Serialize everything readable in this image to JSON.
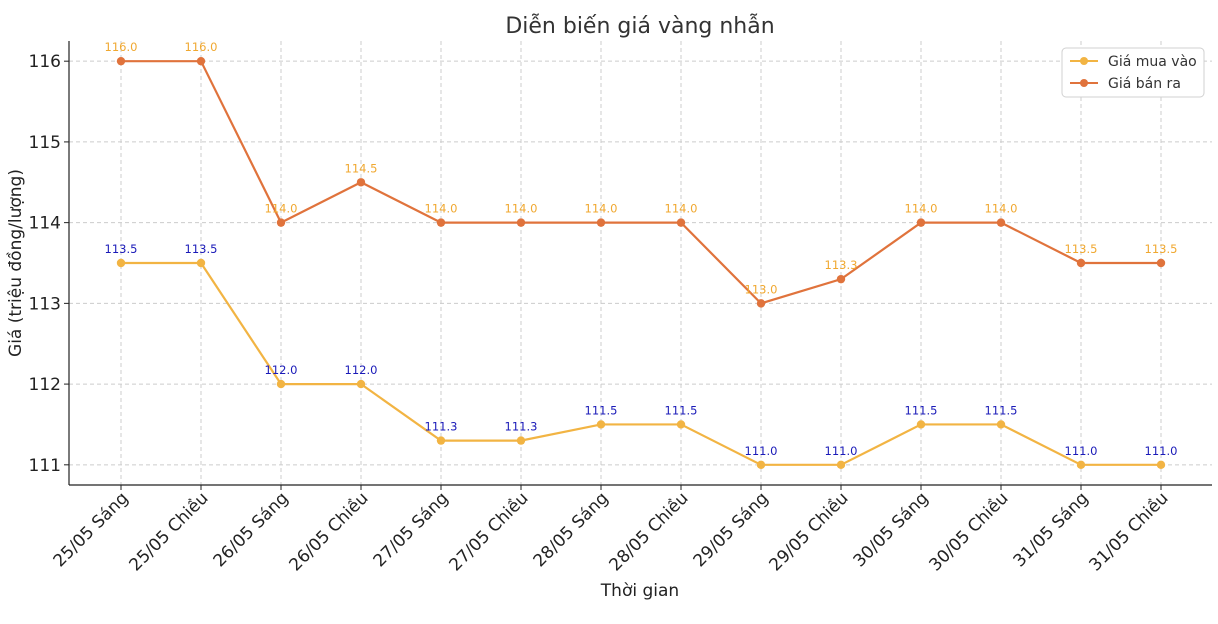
{
  "chart_data": {
    "type": "line",
    "title": "Diễn biến giá vàng nhẫn",
    "xlabel": "Thời gian",
    "ylabel": "Giá (triệu đồng/lượng)",
    "categories": [
      "25/05 Sáng",
      "25/05 Chiều",
      "26/05 Sáng",
      "26/05 Chiều",
      "27/05 Sáng",
      "27/05 Chiều",
      "28/05 Sáng",
      "28/05 Chiều",
      "29/05 Sáng",
      "29/05 Chiều",
      "30/05 Sáng",
      "30/05 Chiều",
      "31/05 Sáng",
      "31/05 Chiều"
    ],
    "yticks": [
      111,
      112,
      113,
      114,
      115,
      116
    ],
    "ylim": [
      110.75,
      116.25
    ],
    "grid": true,
    "legend_position": "top-right",
    "series": [
      {
        "name": "Giá mua vào",
        "color": "#f2b443",
        "label_color": "#1a1ab8",
        "values": [
          113.5,
          113.5,
          112.0,
          112.0,
          111.3,
          111.3,
          111.5,
          111.5,
          111.0,
          111.0,
          111.5,
          111.5,
          111.0,
          111.0
        ],
        "labels": [
          "113.5",
          "113.5",
          "112.0",
          "112.0",
          "111.3",
          "111.3",
          "111.5",
          "111.5",
          "111.0",
          "111.0",
          "111.5",
          "111.5",
          "111.0",
          "111.0"
        ]
      },
      {
        "name": "Giá bán ra",
        "color": "#e0733c",
        "label_color": "#f0a830",
        "values": [
          116.0,
          116.0,
          114.0,
          114.5,
          114.0,
          114.0,
          114.0,
          114.0,
          113.0,
          113.3,
          114.0,
          114.0,
          113.5,
          113.5
        ],
        "labels": [
          "116.0",
          "116.0",
          "114.0",
          "114.5",
          "114.0",
          "114.0",
          "114.0",
          "114.0",
          "113.0",
          "113.3",
          "114.0",
          "114.0",
          "113.5",
          "113.5"
        ]
      }
    ]
  }
}
